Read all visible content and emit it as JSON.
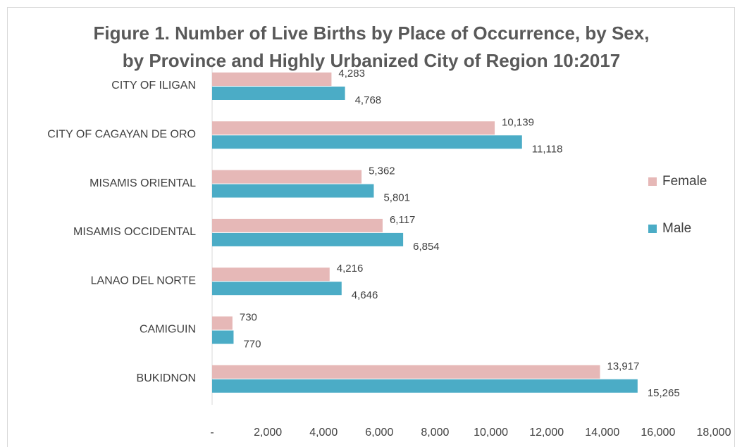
{
  "chart_data": {
    "type": "bar",
    "orientation": "horizontal",
    "title": "Figure 1. Number of Live Births by Place of Occurrence, by Sex, by Province and Highly Urbanized City of Region 10:2017",
    "categories": [
      "CITY OF ILIGAN",
      "CITY OF CAGAYAN DE ORO",
      "MISAMIS ORIENTAL",
      "MISAMIS OCCIDENTAL",
      "LANAO DEL NORTE",
      "CAMIGUIN",
      "BUKIDNON"
    ],
    "series": [
      {
        "name": "Female",
        "color": "#e6b8b7",
        "values": [
          4283,
          10139,
          5362,
          6117,
          4216,
          730,
          13917
        ],
        "value_labels": [
          "4,283",
          "10,139",
          "5,362",
          "6,117",
          "4,216",
          "730",
          "13,917"
        ]
      },
      {
        "name": "Male",
        "color": "#4bacc6",
        "values": [
          4768,
          11118,
          5801,
          6854,
          4646,
          770,
          15265
        ],
        "value_labels": [
          "4,768",
          "11,118",
          "5,801",
          "6,854",
          "4,646",
          "770",
          "15,265"
        ]
      }
    ],
    "xlim": [
      0,
      18000
    ],
    "xticks": [
      {
        "value": 0,
        "label": "-"
      },
      {
        "value": 2000,
        "label": "2,000"
      },
      {
        "value": 4000,
        "label": "4,000"
      },
      {
        "value": 6000,
        "label": "6,000"
      },
      {
        "value": 8000,
        "label": "8,000"
      },
      {
        "value": 10000,
        "label": "10,000"
      },
      {
        "value": 12000,
        "label": "12,000"
      },
      {
        "value": 14000,
        "label": "14,000"
      },
      {
        "value": 16000,
        "label": "16,000"
      },
      {
        "value": 18000,
        "label": "18,000"
      }
    ],
    "legend": "right"
  }
}
